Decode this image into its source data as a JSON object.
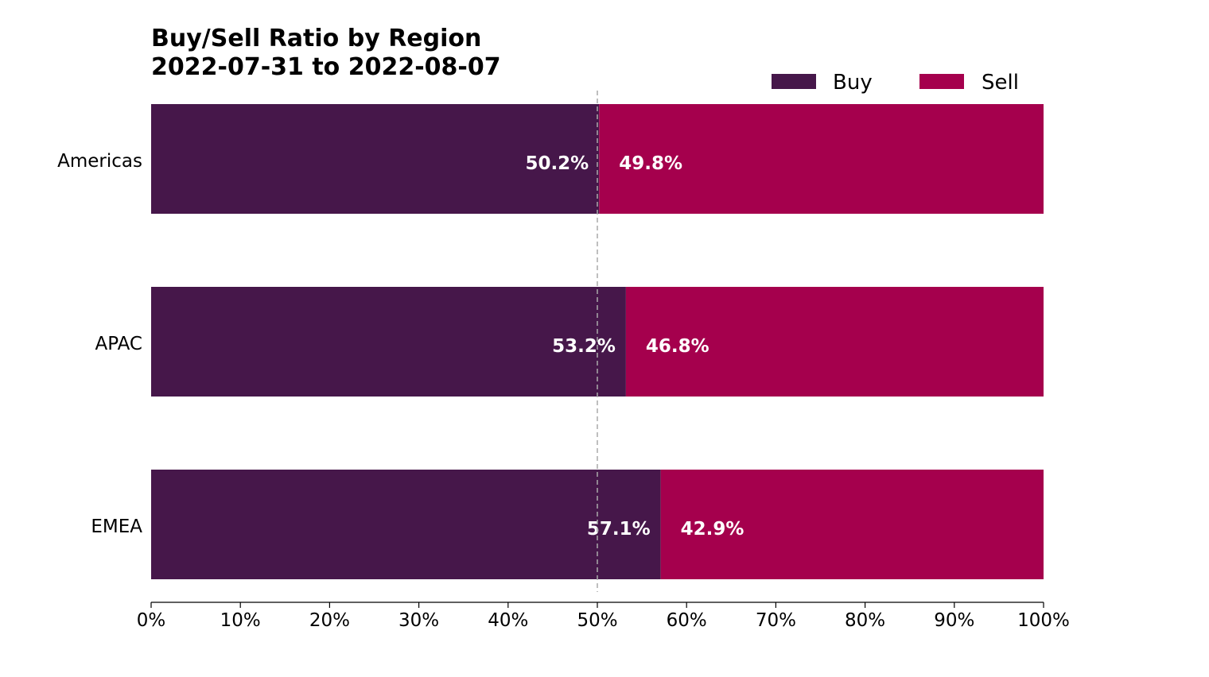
{
  "chart_data": {
    "type": "bar",
    "orientation": "horizontal",
    "stacked": true,
    "title": "Buy/Sell Ratio by Region",
    "subtitle": "2022-07-31 to 2022-08-07",
    "categories": [
      "Americas",
      "APAC",
      "EMEA"
    ],
    "series": [
      {
        "name": "Buy",
        "color": "#46174a",
        "values": [
          50.2,
          53.2,
          57.1
        ],
        "labels": [
          "50.2%",
          "53.2%",
          "57.1%"
        ]
      },
      {
        "name": "Sell",
        "color": "#a5004d",
        "values": [
          49.8,
          46.8,
          42.9
        ],
        "labels": [
          "49.8%",
          "46.8%",
          "42.9%"
        ]
      }
    ],
    "xlim": [
      0,
      100
    ],
    "xticks": [
      0,
      10,
      20,
      30,
      40,
      50,
      60,
      70,
      80,
      90,
      100
    ],
    "xtick_labels": [
      "0%",
      "10%",
      "20%",
      "30%",
      "40%",
      "50%",
      "60%",
      "70%",
      "80%",
      "90%",
      "100%"
    ],
    "reference_line": 50,
    "reference_line_color": "#aaaaaa",
    "legend_position": "top-right",
    "grid": false,
    "xlabel": "",
    "ylabel": ""
  }
}
